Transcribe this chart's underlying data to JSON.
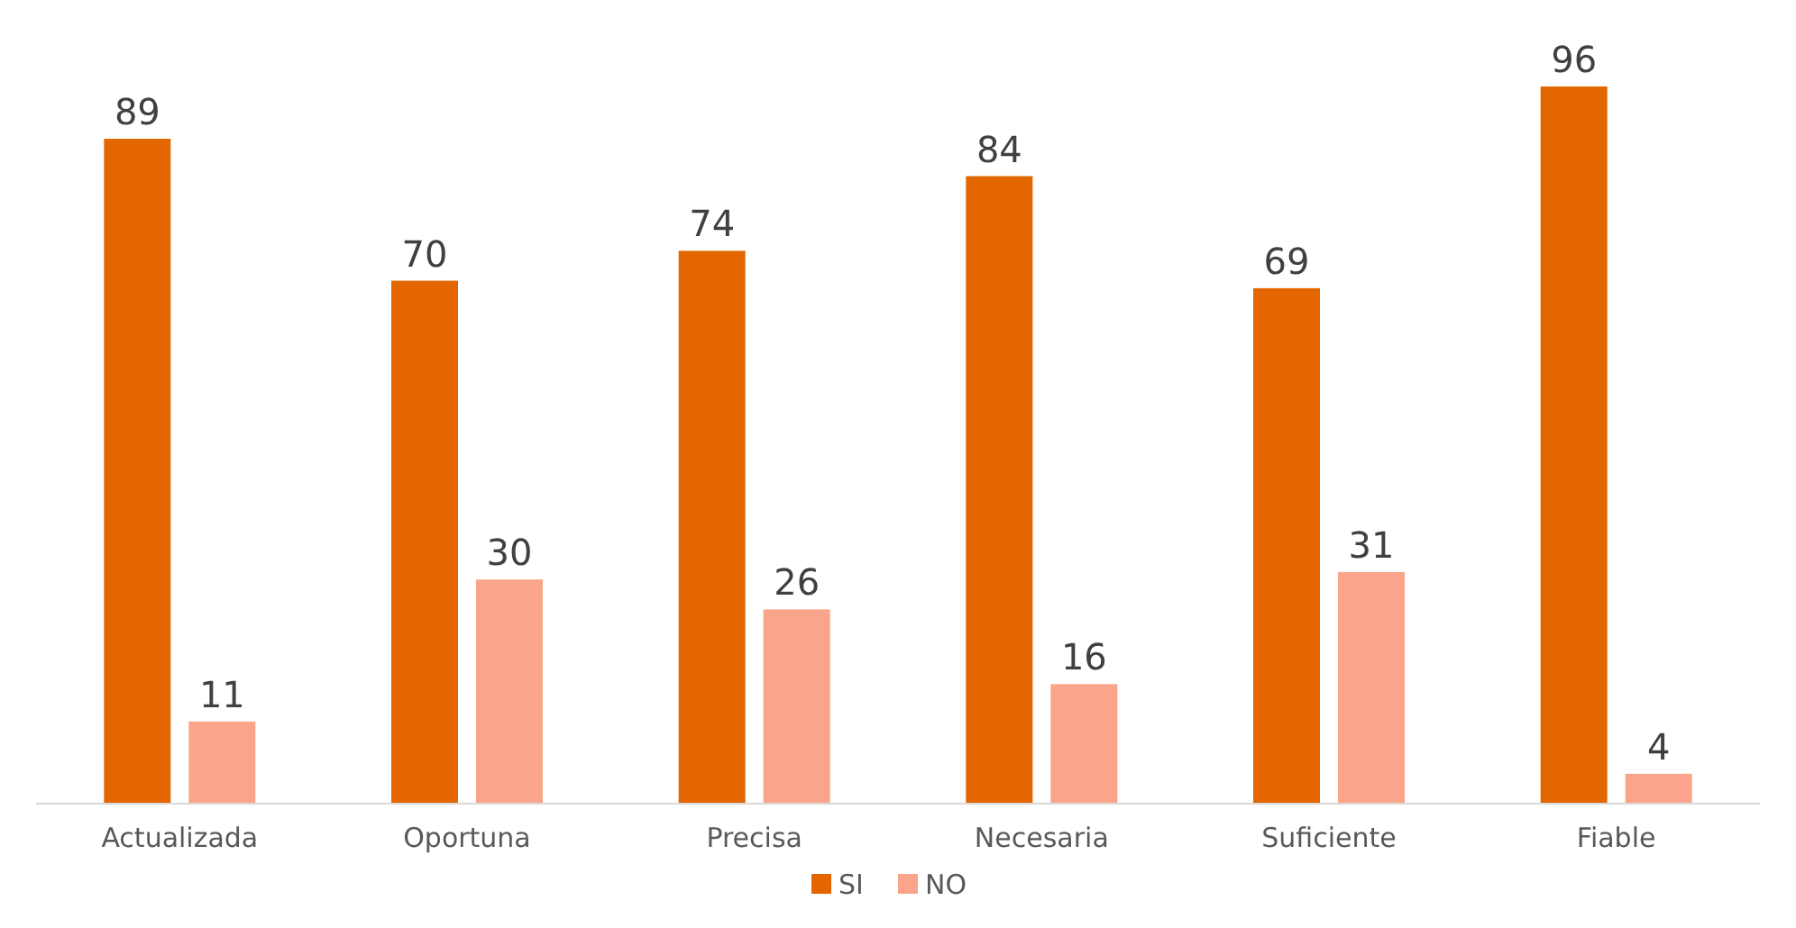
{
  "chart_data": {
    "type": "bar",
    "categories": [
      "Actualizada",
      "Oportuna",
      "Precisa",
      "Necesaria",
      "Suficiente",
      "Fiable"
    ],
    "series": [
      {
        "name": "SI",
        "color": "#e36600",
        "values": [
          89,
          70,
          74,
          84,
          69,
          96
        ]
      },
      {
        "name": "NO",
        "color": "#f9a48b",
        "values": [
          11,
          30,
          26,
          16,
          31,
          4
        ]
      }
    ],
    "data_labels": true,
    "legend": "bottom",
    "grid": false
  }
}
